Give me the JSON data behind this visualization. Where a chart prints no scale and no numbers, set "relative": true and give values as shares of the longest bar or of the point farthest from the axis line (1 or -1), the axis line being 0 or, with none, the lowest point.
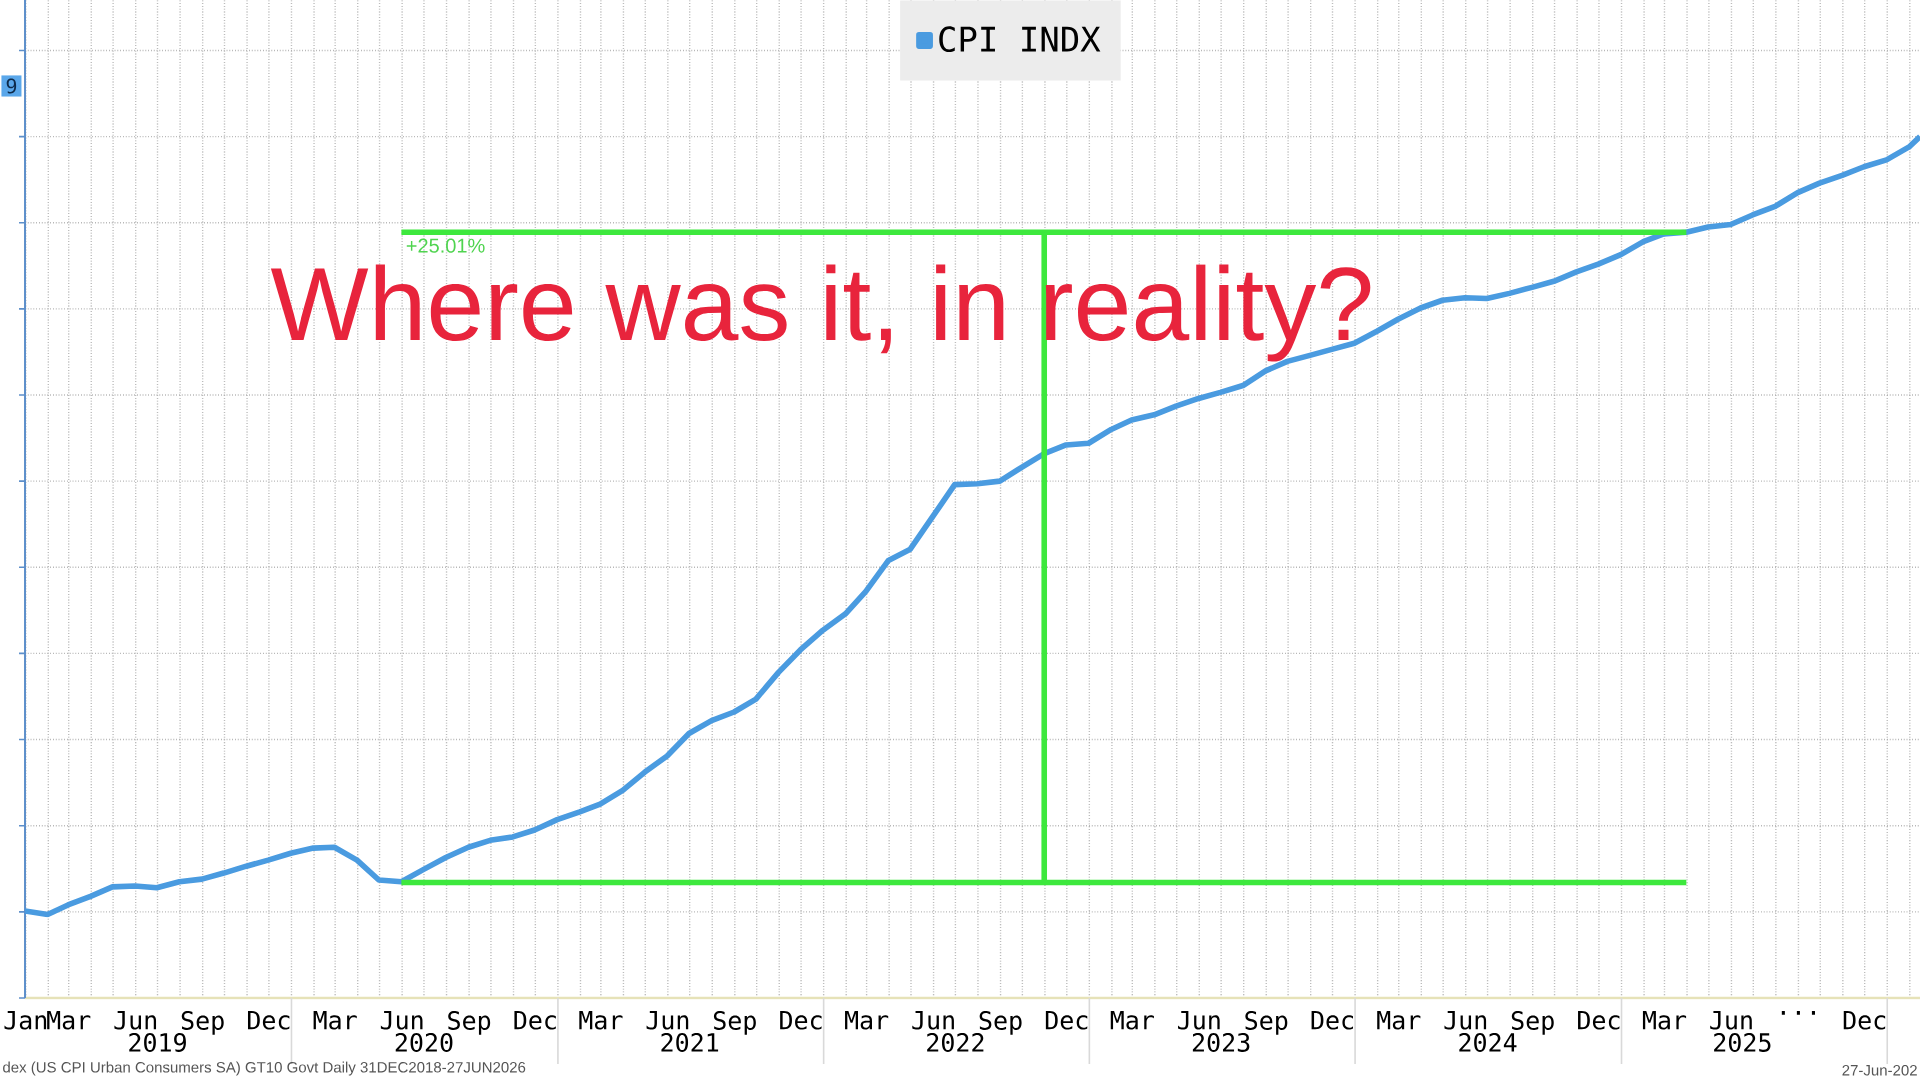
{
  "chart_data": {
    "type": "line",
    "relative": true,
    "grid": true,
    "legend": "top",
    "xlim": [
      "2018-12-31",
      "2026-02-15"
    ],
    "xticks": [
      {
        "value": "2019-01",
        "label": "Jan"
      },
      {
        "value": "2019-02",
        "label": null
      },
      {
        "value": "2019-03",
        "label": "Mar"
      },
      {
        "value": "2019-04",
        "label": null
      },
      {
        "value": "2019-05",
        "label": null
      },
      {
        "value": "2019-06",
        "label": "Jun"
      },
      {
        "value": "2019-07",
        "label": null
      },
      {
        "value": "2019-08",
        "label": null
      },
      {
        "value": "2019-09",
        "label": "Sep"
      },
      {
        "value": "2019-10",
        "label": null
      },
      {
        "value": "2019-11",
        "label": null
      },
      {
        "value": "2019-12",
        "label": "Dec"
      },
      {
        "value": "2020-01",
        "label": null
      },
      {
        "value": "2020-02",
        "label": null
      },
      {
        "value": "2020-03",
        "label": "Mar"
      },
      {
        "value": "2020-04",
        "label": null
      },
      {
        "value": "2020-05",
        "label": null
      },
      {
        "value": "2020-06",
        "label": "Jun"
      },
      {
        "value": "2020-07",
        "label": null
      },
      {
        "value": "2020-08",
        "label": null
      },
      {
        "value": "2020-09",
        "label": "Sep"
      },
      {
        "value": "2020-10",
        "label": null
      },
      {
        "value": "2020-11",
        "label": null
      },
      {
        "value": "2020-12",
        "label": "Dec"
      },
      {
        "value": "2021-01",
        "label": null
      },
      {
        "value": "2021-02",
        "label": null
      },
      {
        "value": "2021-03",
        "label": "Mar"
      },
      {
        "value": "2021-04",
        "label": null
      },
      {
        "value": "2021-05",
        "label": null
      },
      {
        "value": "2021-06",
        "label": "Jun"
      },
      {
        "value": "2021-07",
        "label": null
      },
      {
        "value": "2021-08",
        "label": null
      },
      {
        "value": "2021-09",
        "label": "Sep"
      },
      {
        "value": "2021-10",
        "label": null
      },
      {
        "value": "2021-11",
        "label": null
      },
      {
        "value": "2021-12",
        "label": "Dec"
      },
      {
        "value": "2022-01",
        "label": null
      },
      {
        "value": "2022-02",
        "label": null
      },
      {
        "value": "2022-03",
        "label": "Mar"
      },
      {
        "value": "2022-04",
        "label": null
      },
      {
        "value": "2022-05",
        "label": null
      },
      {
        "value": "2022-06",
        "label": "Jun"
      },
      {
        "value": "2022-07",
        "label": null
      },
      {
        "value": "2022-08",
        "label": null
      },
      {
        "value": "2022-09",
        "label": "Sep"
      },
      {
        "value": "2022-10",
        "label": null
      },
      {
        "value": "2022-11",
        "label": null
      },
      {
        "value": "2022-12",
        "label": "Dec"
      },
      {
        "value": "2023-01",
        "label": null
      },
      {
        "value": "2023-02",
        "label": null
      },
      {
        "value": "2023-03",
        "label": "Mar"
      },
      {
        "value": "2023-04",
        "label": null
      },
      {
        "value": "2023-05",
        "label": null
      },
      {
        "value": "2023-06",
        "label": "Jun"
      },
      {
        "value": "2023-07",
        "label": null
      },
      {
        "value": "2023-08",
        "label": null
      },
      {
        "value": "2023-09",
        "label": "Sep"
      },
      {
        "value": "2023-10",
        "label": null
      },
      {
        "value": "2023-11",
        "label": null
      },
      {
        "value": "2023-12",
        "label": "Dec"
      },
      {
        "value": "2024-01",
        "label": null
      },
      {
        "value": "2024-02",
        "label": null
      },
      {
        "value": "2024-03",
        "label": "Mar"
      },
      {
        "value": "2024-04",
        "label": null
      },
      {
        "value": "2024-05",
        "label": null
      },
      {
        "value": "2024-06",
        "label": "Jun"
      },
      {
        "value": "2024-07",
        "label": null
      },
      {
        "value": "2024-08",
        "label": null
      },
      {
        "value": "2024-09",
        "label": "Sep"
      },
      {
        "value": "2024-10",
        "label": null
      },
      {
        "value": "2024-11",
        "label": null
      },
      {
        "value": "2024-12",
        "label": "Dec"
      },
      {
        "value": "2025-01",
        "label": null
      },
      {
        "value": "2025-02",
        "label": null
      },
      {
        "value": "2025-03",
        "label": "Mar"
      },
      {
        "value": "2025-04",
        "label": null
      },
      {
        "value": "2025-05",
        "label": null
      },
      {
        "value": "2025-06",
        "label": "Jun"
      },
      {
        "value": "2025-07",
        "label": null
      },
      {
        "value": "2025-08",
        "label": null
      },
      {
        "value": "2025-09",
        "label": "..."
      },
      {
        "value": "2025-10",
        "label": null
      },
      {
        "value": "2025-11",
        "label": null
      },
      {
        "value": "2025-12",
        "label": "Dec"
      },
      {
        "value": "2026-01",
        "label": null
      },
      {
        "value": "2026-02",
        "label": null
      }
    ],
    "x2lim": [
      "2018-12-31",
      "2026-02-15"
    ],
    "x2ticks": [
      {
        "value": "2019-07",
        "label": "2019"
      },
      {
        "value": "2020-01",
        "label": null
      },
      {
        "value": "2020-07",
        "label": "2020"
      },
      {
        "value": "2021-01",
        "label": null
      },
      {
        "value": "2021-07",
        "label": "2021"
      },
      {
        "value": "2022-01",
        "label": null
      },
      {
        "value": "2022-07",
        "label": "2022"
      },
      {
        "value": "2023-01",
        "label": null
      },
      {
        "value": "2023-07",
        "label": "2023"
      },
      {
        "value": "2024-01",
        "label": null
      },
      {
        "value": "2024-07",
        "label": "2024"
      },
      {
        "value": "2025-01",
        "label": null
      },
      {
        "value": "2025-06-16",
        "label": "2025"
      },
      {
        "value": "2026-01",
        "label": null
      }
    ],
    "series": [
      {
        "name": "CPI INDX",
        "color": "#4a9be0",
        "x": [
          "2018-12-31",
          "2019-01-31",
          "2019-02-28",
          "2019-03-31",
          "2019-04-30",
          "2019-05-31",
          "2019-06-30",
          "2019-07-31",
          "2019-08-31",
          "2019-09-30",
          "2019-10-31",
          "2019-11-30",
          "2019-12-31",
          "2020-01-31",
          "2020-02-29",
          "2020-03-31",
          "2020-04-30",
          "2020-05-31",
          "2020-06-30",
          "2020-07-31",
          "2020-08-31",
          "2020-09-30",
          "2020-10-31",
          "2020-11-30",
          "2020-12-31",
          "2021-01-31",
          "2021-02-28",
          "2021-03-31",
          "2021-04-30",
          "2021-05-31",
          "2021-06-30",
          "2021-07-31",
          "2021-08-31",
          "2021-09-30",
          "2021-10-31",
          "2021-11-30",
          "2021-12-31",
          "2022-01-31",
          "2022-02-28",
          "2022-03-31",
          "2022-04-30",
          "2022-05-31",
          "2022-06-30",
          "2022-07-31",
          "2022-08-31",
          "2022-09-30",
          "2022-10-31",
          "2022-11-30",
          "2022-12-31",
          "2023-01-31",
          "2023-02-28",
          "2023-03-31",
          "2023-04-30",
          "2023-05-31",
          "2023-06-30",
          "2023-07-31",
          "2023-08-31",
          "2023-09-30",
          "2023-10-31",
          "2023-11-30",
          "2023-12-31",
          "2024-01-31",
          "2024-02-29",
          "2024-03-31",
          "2024-04-30",
          "2024-05-31",
          "2024-06-30",
          "2024-07-31",
          "2024-08-31",
          "2024-09-30",
          "2024-10-31",
          "2024-11-30",
          "2024-12-31",
          "2025-01-31",
          "2025-02-28",
          "2025-03-31",
          "2025-04-30",
          "2025-05-31",
          "2025-06-30",
          "2025-07-31",
          "2025-08-31",
          "2025-09-30",
          "2025-10-31",
          "2025-11-30",
          "2025-12-31",
          "2026-01-31",
          "2026-02-15"
        ],
        "values": [
          0.101,
          0.097,
          0.108,
          0.118,
          0.129,
          0.13,
          0.128,
          0.135,
          0.138,
          0.145,
          0.153,
          0.16,
          0.168,
          0.174,
          0.175,
          0.16,
          0.137,
          0.135,
          0.149,
          0.163,
          0.175,
          0.183,
          0.187,
          0.195,
          0.207,
          0.216,
          0.225,
          0.241,
          0.262,
          0.281,
          0.307,
          0.322,
          0.332,
          0.347,
          0.378,
          0.404,
          0.427,
          0.446,
          0.472,
          0.508,
          0.521,
          0.559,
          0.596,
          0.597,
          0.6,
          0.616,
          0.632,
          0.642,
          0.644,
          0.66,
          0.671,
          0.677,
          0.687,
          0.696,
          0.703,
          0.711,
          0.728,
          0.739,
          0.746,
          0.753,
          0.76,
          0.774,
          0.788,
          0.801,
          0.81,
          0.813,
          0.812,
          0.818,
          0.825,
          0.832,
          0.843,
          0.852,
          0.863,
          0.878,
          0.887,
          0.889,
          0.895,
          0.898,
          0.909,
          0.919,
          0.935,
          0.946,
          0.955,
          0.965,
          0.973,
          0.988,
          1.0
        ]
      },
      {
        "type": "line",
        "color": "#3de83d",
        "x": [
          "2020-05-31",
          "2025-03-31"
        ],
        "values": [
          0.134,
          0.134
        ]
      },
      {
        "type": "line",
        "color": "#3de83d",
        "x": [
          "2020-05-31",
          "2025-03-31"
        ],
        "values": [
          0.889,
          0.889
        ]
      },
      {
        "type": "line",
        "color": "#3de83d",
        "x": [
          "2022-10-31",
          "2022-10-31"
        ],
        "values": [
          0.134,
          0.889
        ]
      }
    ],
    "annotations": [
      "Where was it, in reality?",
      {
        "text": "+25.01%",
        "x": "2020-05-31",
        "y": 0.889
      },
      "9",
      "dex (US CPI Urban Consumers SA) GT10 Govt Daily 31DEC2018-27JUN2026",
      "27-Jun-202"
    ]
  }
}
